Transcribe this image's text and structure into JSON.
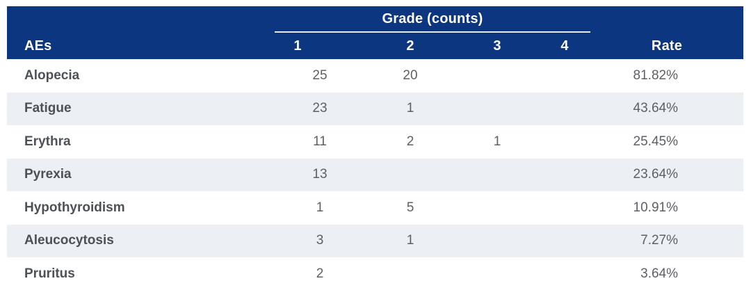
{
  "table": {
    "group_header": "Grade (counts)",
    "columns": {
      "aes": "AEs",
      "grades": [
        "1",
        "2",
        "3",
        "4"
      ],
      "rate": "Rate"
    },
    "rows": [
      {
        "ae": "Alopecia",
        "grades": [
          "25",
          "20",
          "",
          ""
        ],
        "rate": "81.82%"
      },
      {
        "ae": "Fatigue",
        "grades": [
          "23",
          "1",
          "",
          ""
        ],
        "rate": "43.64%"
      },
      {
        "ae": "Erythra",
        "grades": [
          "11",
          "2",
          "1",
          ""
        ],
        "rate": "25.45%"
      },
      {
        "ae": "Pyrexia",
        "grades": [
          "13",
          "",
          "",
          ""
        ],
        "rate": "23.64%"
      },
      {
        "ae": "Hypothyroidism",
        "grades": [
          "1",
          "5",
          "",
          ""
        ],
        "rate": "10.91%"
      },
      {
        "ae": "Aleucocytosis",
        "grades": [
          "3",
          "1",
          "",
          ""
        ],
        "rate": "7.27%"
      },
      {
        "ae": "Pruritus",
        "grades": [
          "2",
          "",
          "",
          ""
        ],
        "rate": "3.64%"
      }
    ]
  },
  "colors": {
    "header_bg": "#0D3680",
    "header_text": "#FFFFFF",
    "stripe_bg": "#ECEFF4",
    "row_label_text": "#4D5156",
    "value_text": "#5C5F63",
    "header_underline": "#E9EDF2"
  },
  "chart_data": {
    "type": "table",
    "title": "Grade (counts)",
    "columns": [
      "AEs",
      "1",
      "2",
      "3",
      "4",
      "Rate"
    ],
    "rows": [
      [
        "Alopecia",
        25,
        20,
        null,
        null,
        "81.82%"
      ],
      [
        "Fatigue",
        23,
        1,
        null,
        null,
        "43.64%"
      ],
      [
        "Erythra",
        11,
        2,
        1,
        null,
        "25.45%"
      ],
      [
        "Pyrexia",
        13,
        null,
        null,
        null,
        "23.64%"
      ],
      [
        "Hypothyroidism",
        1,
        5,
        null,
        null,
        "10.91%"
      ],
      [
        "Aleucocytosis",
        3,
        1,
        null,
        null,
        "7.27%"
      ],
      [
        "Pruritus",
        2,
        null,
        null,
        null,
        "3.64%"
      ]
    ]
  }
}
